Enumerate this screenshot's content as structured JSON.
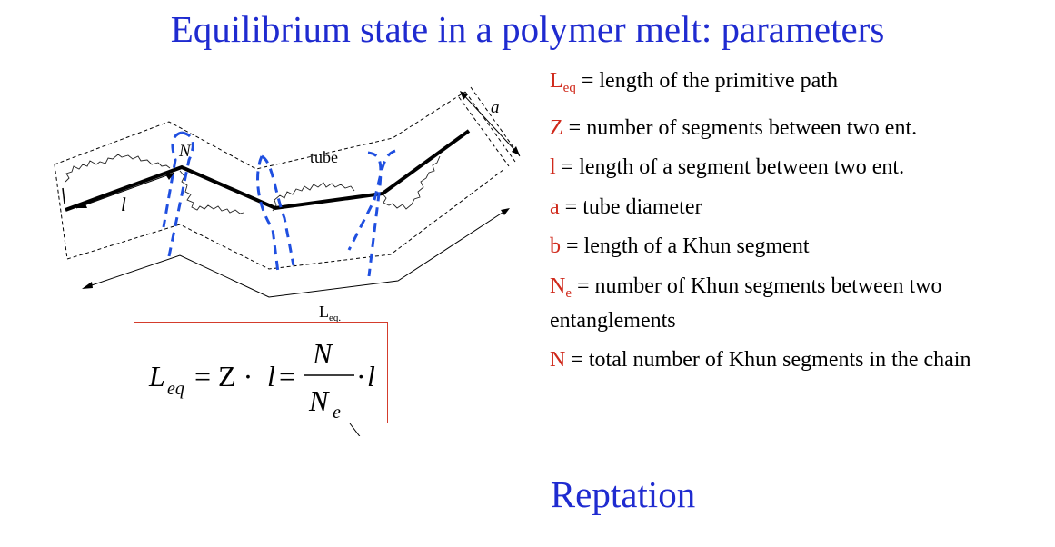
{
  "title": "Equilibrium state in a polymer melt: parameters",
  "bottom_title": "Reptation",
  "diagram": {
    "label_a": "a",
    "label_N": "N",
    "label_tube": "tube",
    "label_l": "l",
    "label_Leq_main": "L",
    "label_Leq_sub": "eq."
  },
  "formula": {
    "lhs_main": "L",
    "lhs_sub": "eq",
    "eq1": "= Z ·",
    "l1": "l",
    "eq2": "=",
    "numerator": "N",
    "den_main": "N",
    "den_sub": "e",
    "dot": "·",
    "l2": "l"
  },
  "definitions": [
    {
      "sym": "L",
      "sub": "eq",
      "text": " = length of the primitive path"
    },
    {
      "sym": "Z",
      "sub": "",
      "text": " = number of segments between two ent."
    },
    {
      "sym": "l",
      "sub": "",
      "text": " = length of a segment between two ent."
    },
    {
      "sym": "a",
      "sub": "",
      "text": " = tube diameter"
    },
    {
      "sym": "b",
      "sub": "",
      "text": " = length of a Khun segment"
    },
    {
      "sym": "N",
      "sub": "e",
      "text": " = number of Khun segments between two entanglements"
    },
    {
      "sym": "N",
      "sub": "",
      "text": " = total number of Khun segments in the chain"
    }
  ],
  "colors": {
    "title": "#1f2bd0",
    "symbol": "#d02a1c",
    "entanglement": "#1f4fe0",
    "box_border": "#d43c2c"
  }
}
